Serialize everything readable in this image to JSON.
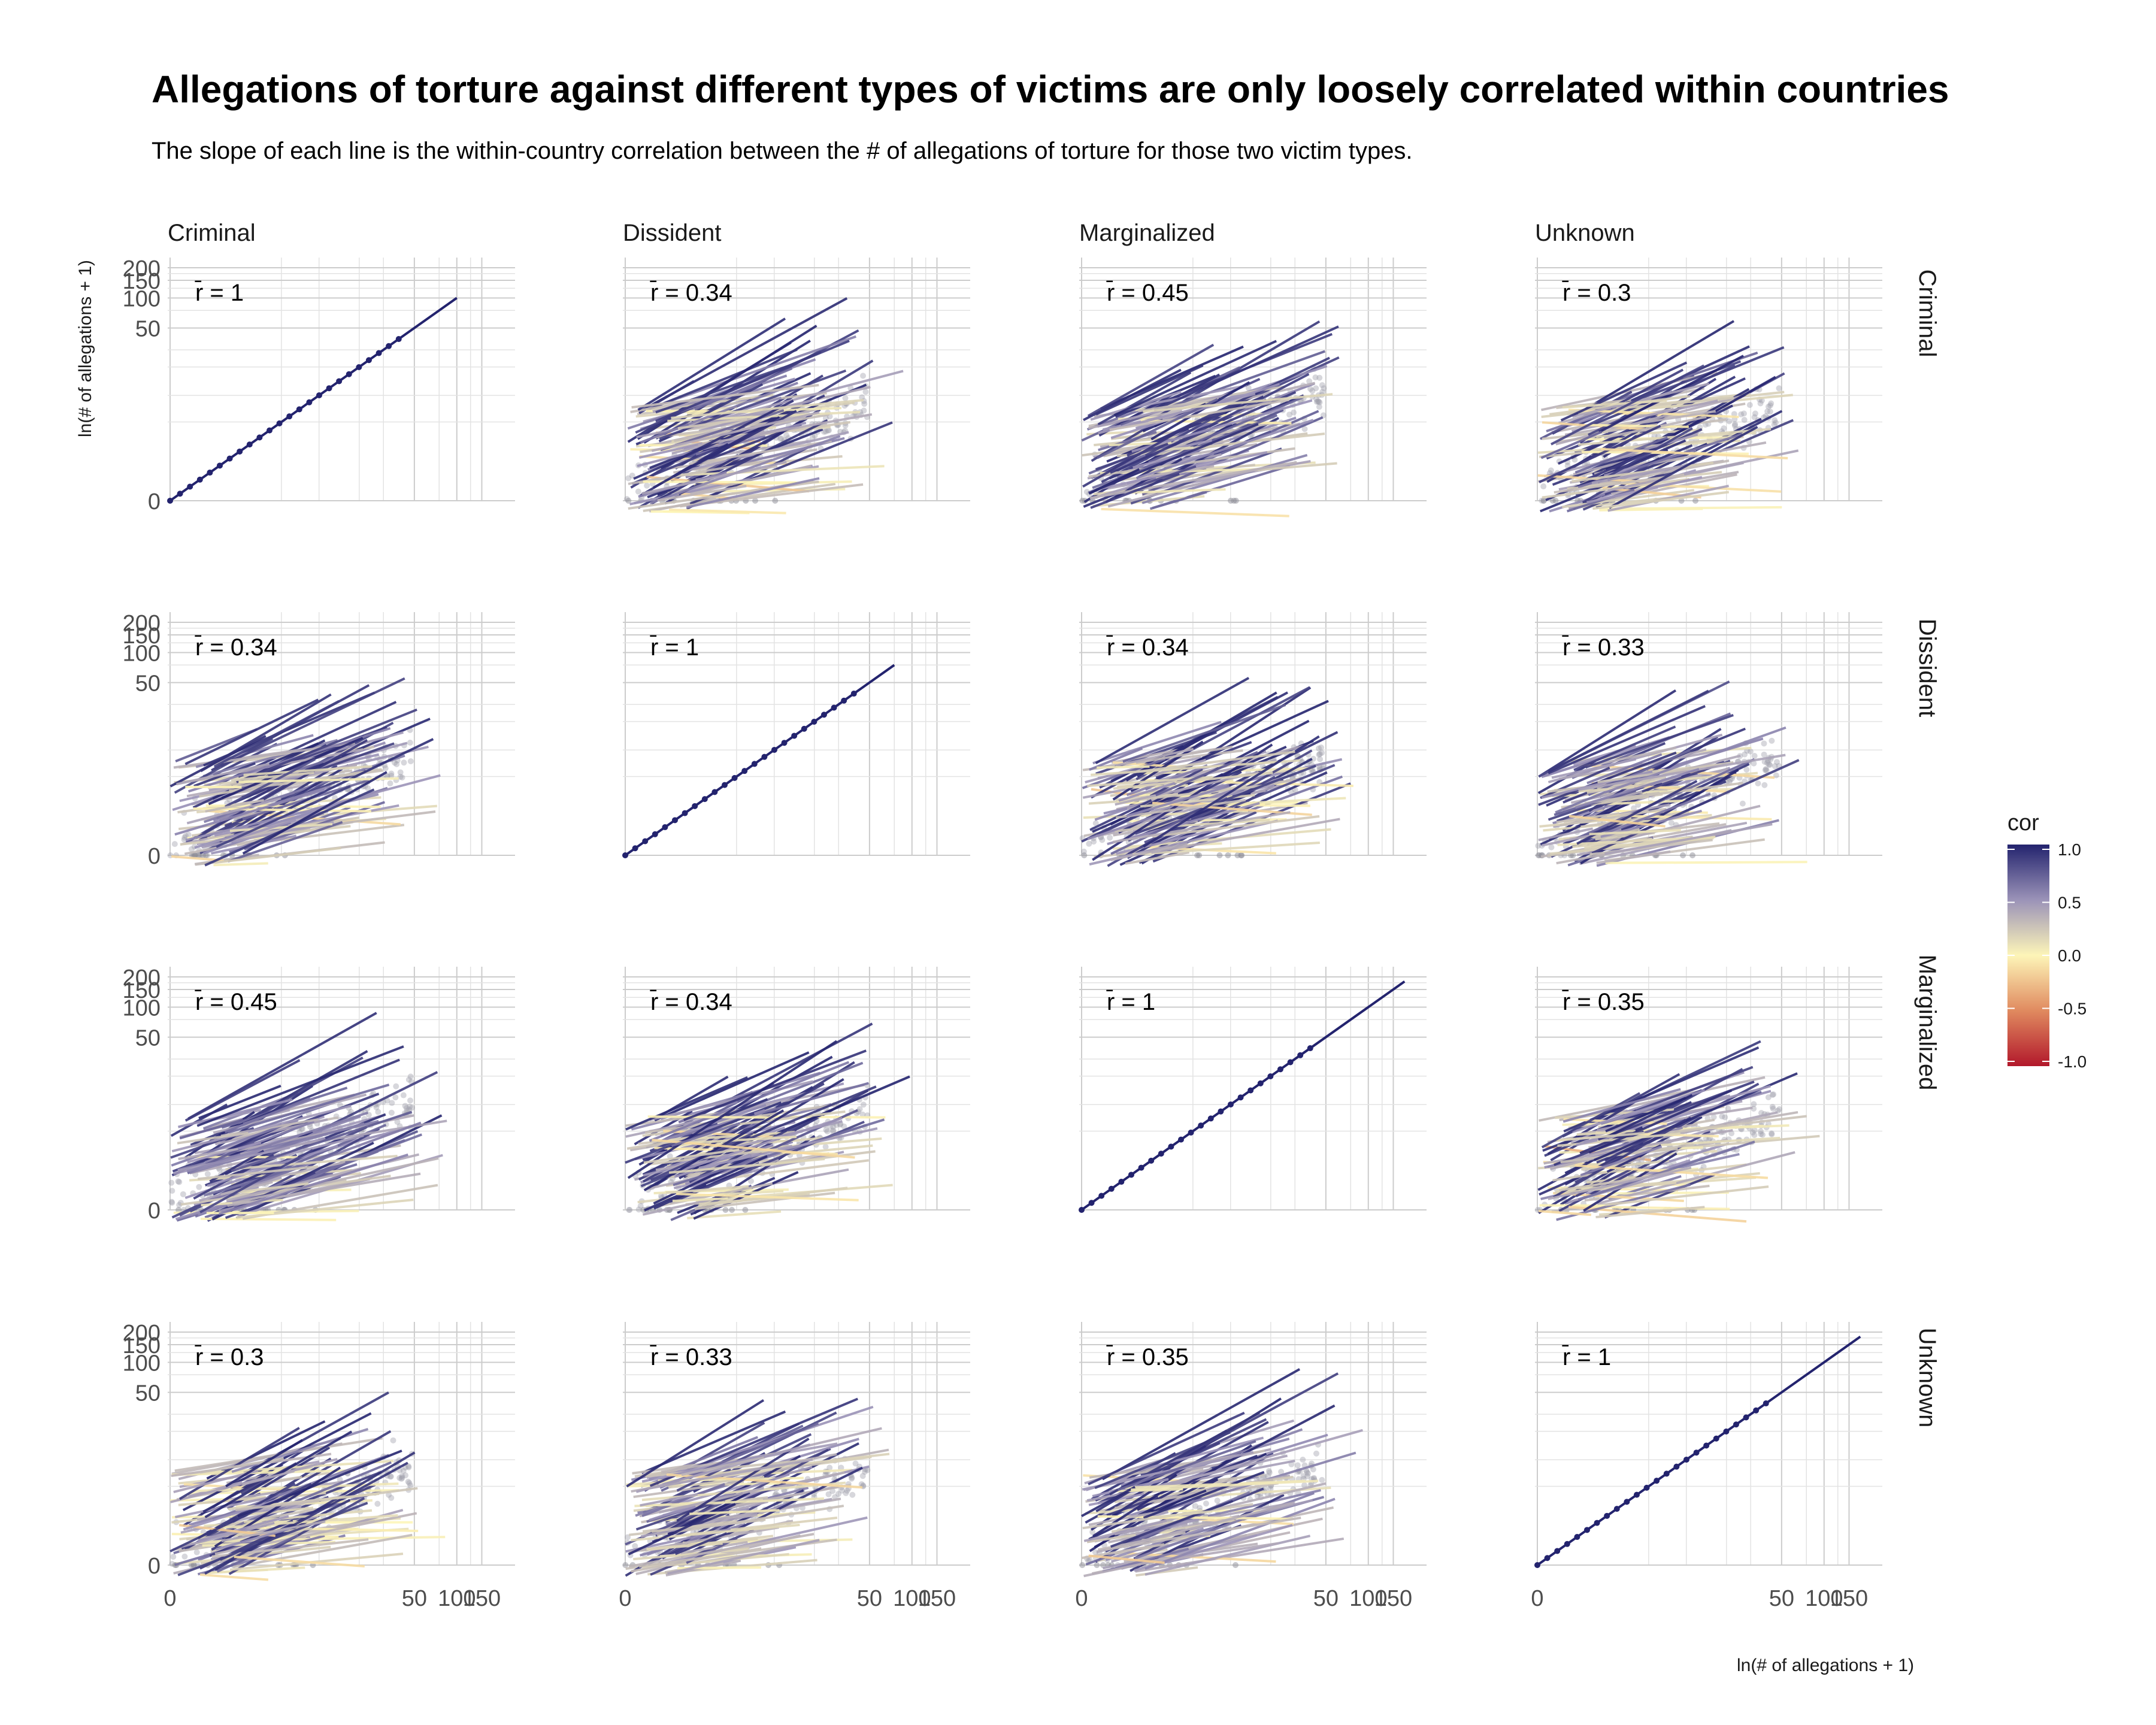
{
  "title": "Allegations of torture against different types of victims are only loosely correlated within countries",
  "subtitle": "The slope of each line is the within-country correlation between the # of allegations of torture for those two victim types.",
  "chart_data": {
    "type": "scatter",
    "layout": "facet-grid",
    "facet_cols": [
      "Criminal",
      "Dissident",
      "Marginalized",
      "Unknown"
    ],
    "facet_rows": [
      "Criminal",
      "Dissident",
      "Marginalized",
      "Unknown"
    ],
    "xlabel": "ln(# of allegations + 1)",
    "ylabel": "ln(# of allegations + 1)",
    "x_ticks": [
      0,
      50,
      100,
      150
    ],
    "y_ticks": [
      0,
      50,
      100,
      150,
      200
    ],
    "axis_scale": "log1p",
    "mean_r": [
      [
        "1",
        "0.34",
        "0.45",
        "0.3"
      ],
      [
        "0.34",
        "1",
        "0.34",
        "0.33"
      ],
      [
        "0.45",
        "0.34",
        "1",
        "0.35"
      ],
      [
        "0.3",
        "0.33",
        "0.35",
        "1"
      ]
    ],
    "annotation_prefix": "r̄ = ",
    "legend": {
      "title": "cor",
      "placement": "right",
      "ticks": [
        "1.0",
        "0.5",
        "0.0",
        "-0.5",
        "-1.0"
      ],
      "colors": [
        "#b2182b",
        "#e08a5f",
        "#fdf5b8",
        "#9b93b8",
        "#23236e"
      ]
    },
    "point_color": "#9a9aa8",
    "grid": true
  }
}
